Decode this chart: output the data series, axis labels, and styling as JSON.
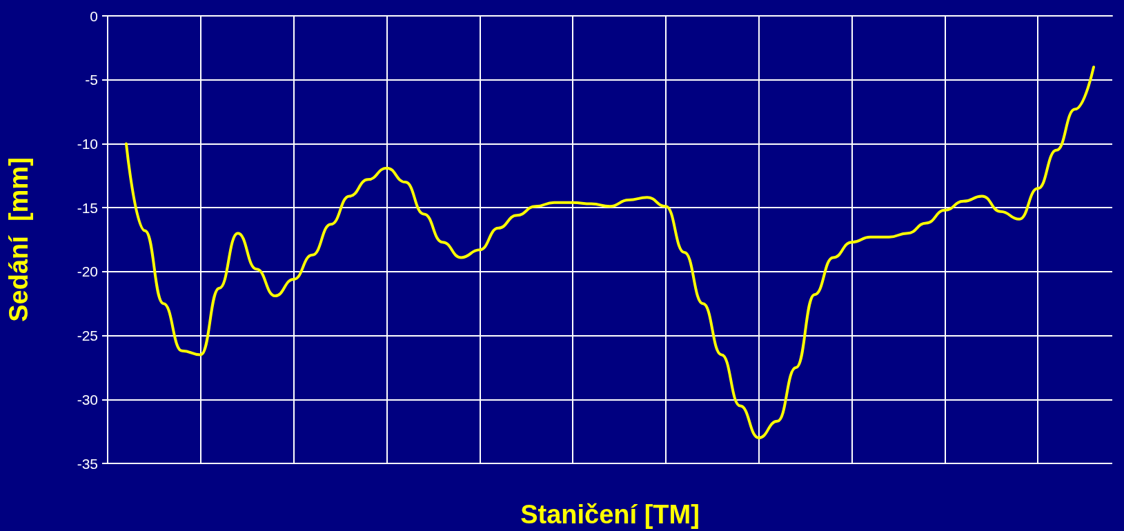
{
  "chart_data": {
    "type": "line",
    "xlabel": "Staničení [TM]",
    "ylabel": "Sedání  [mm]",
    "categories": [
      null,
      null,
      null,
      null,
      null,
      null,
      null,
      null,
      null,
      null,
      null,
      null,
      null,
      null,
      null,
      null,
      null,
      null,
      null,
      null,
      null,
      null,
      null,
      null,
      null,
      null,
      null,
      null,
      null,
      null,
      null,
      null,
      null,
      null,
      null,
      null,
      null,
      null,
      null,
      null,
      null,
      null,
      null,
      null,
      null,
      null,
      null,
      null,
      null,
      null,
      null,
      null,
      null,
      null,
      null
    ],
    "series": [
      {
        "color": "#ffff00",
        "values": [
          null,
          -10,
          -16.8,
          -22.5,
          -26.2,
          -26.5,
          -21.3,
          -17,
          -19.8,
          -21.9,
          -20.6,
          -18.7,
          -16.3,
          -14.1,
          -12.8,
          -11.9,
          -13,
          -15.5,
          -17.7,
          -18.9,
          -18.3,
          -16.6,
          -15.6,
          -14.9,
          -14.6,
          -14.6,
          -14.7,
          -14.9,
          -14.4,
          -14.2,
          -14.9,
          -18.5,
          -22.5,
          -26.5,
          -30.5,
          -33,
          -31.7,
          -27.5,
          -21.8,
          -18.9,
          -17.7,
          -17.3,
          -17.3,
          -17,
          -16.2,
          -15.2,
          -14.5,
          -14.1,
          -15.3,
          -15.9,
          -13.5,
          -10.5,
          -7.3,
          -4,
          null
        ]
      }
    ],
    "ylim": [
      -35,
      0
    ],
    "yticks": [
      -35,
      -30,
      -25,
      -20,
      -15,
      -10,
      -5,
      0
    ],
    "grid": true,
    "tick_labels": "y",
    "marker": "none",
    "line_style": "solid"
  }
}
